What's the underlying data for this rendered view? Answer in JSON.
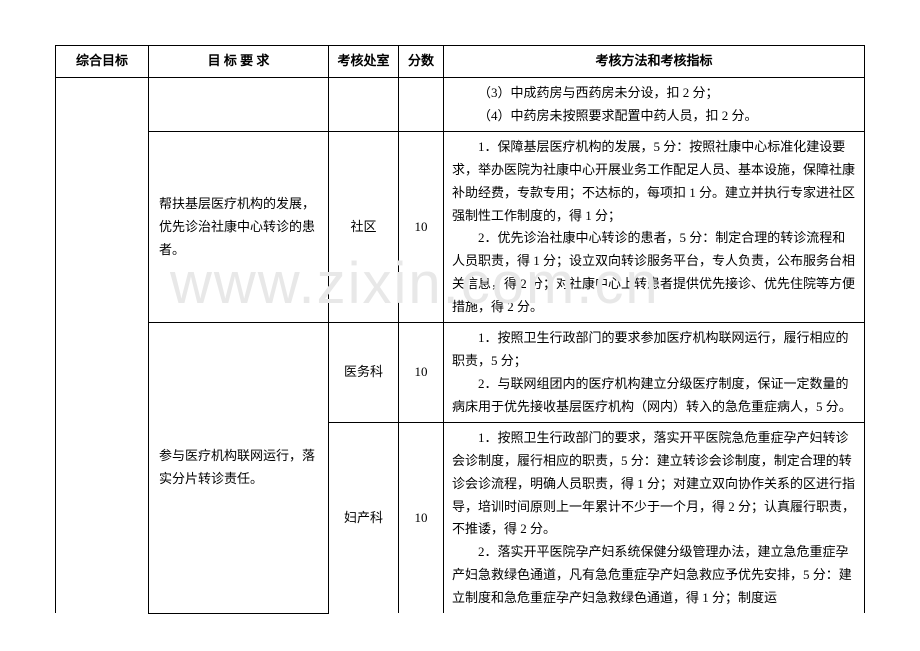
{
  "watermark": "www.zixin.com.cn",
  "headers": {
    "goal": "综合目标",
    "requirement": "目 标 要 求",
    "dept": "考核处室",
    "score": "分数",
    "criteria": "考核方法和考核指标"
  },
  "rows": [
    {
      "req": "",
      "dept": "",
      "score": "",
      "criteria": "（3）中成药房与西药房未分设，扣 2 分；\n（4）中药房未按照要求配置中药人员，扣 2 分。"
    },
    {
      "req": "帮扶基层医疗机构的发展，优先诊治社康中心转诊的患者。",
      "dept": "社区",
      "score": "10",
      "criteria": "1．保障基层医疗机构的发展，5 分：按照社康中心标准化建设要求，举办医院为社康中心开展业务工作配足人员、基本设施，保障社康补助经费，专款专用；不达标的，每项扣 1 分。建立并执行专家进社区强制性工作制度的，得 1 分；\n2．优先诊治社康中心转诊的患者，5 分：制定合理的转诊流程和人员职责，得 1 分；设立双向转诊服务平台，专人负责，公布服务台相关信息，得 2 分；对社康中心上转患者提供优先接诊、优先住院等方便措施，得 2 分。"
    },
    {
      "req": "参与医疗机构联网运行，落实分片转诊责任。",
      "dept1": "医务科",
      "score1": "10",
      "criteria1": "1．按照卫生行政部门的要求参加医疗机构联网运行，履行相应的职责，5 分；\n2．与联网组团内的医疗机构建立分级医疗制度，保证一定数量的病床用于优先接收基层医疗机构（网内）转入的急危重症病人，5 分。",
      "dept2": "妇产科",
      "score2": "10",
      "criteria2": "1．按照卫生行政部门的要求，落实开平医院急危重症孕产妇转诊会诊制度，履行相应的职责，5 分：建立转诊会诊制度，制定合理的转诊会诊流程，明确人员职责，得 1 分；对建立双向协作关系的区进行指导，培训时间原则上一年累计不少于一个月，得 2 分；认真履行职责，不推诿，得 2 分。\n2．落实开平医院孕产妇系统保健分级管理办法，建立急危重症孕产妇急救绿色通道，凡有急危重症孕产妇急救应予优先安排，5 分：建立制度和急危重症孕产妇急救绿色通道，得 1 分；制度运"
    }
  ]
}
